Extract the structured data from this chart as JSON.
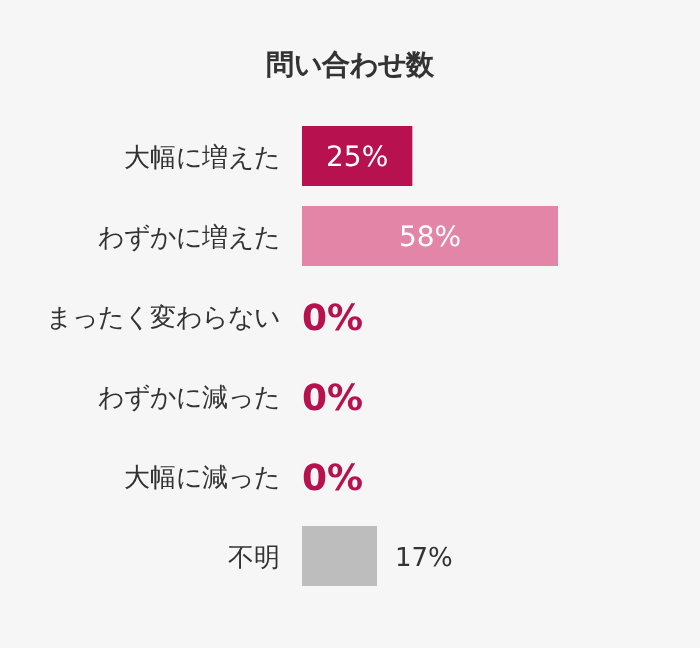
{
  "chart_data": {
    "type": "bar",
    "orientation": "horizontal",
    "title": "問い合わせ数",
    "categories": [
      "大幅に増えた",
      "わずかに増えた",
      "まったく変わらない",
      "わずかに減った",
      "大幅に減った",
      "不明"
    ],
    "values": [
      25,
      58,
      0,
      0,
      0,
      17
    ],
    "colors": [
      "#b8114f",
      "#e385a6",
      "#b8114f",
      "#b8114f",
      "#b8114f",
      "#bdbdbd"
    ],
    "value_labels": [
      "25%",
      "58%",
      "0%",
      "0%",
      "0%",
      "17%"
    ]
  }
}
